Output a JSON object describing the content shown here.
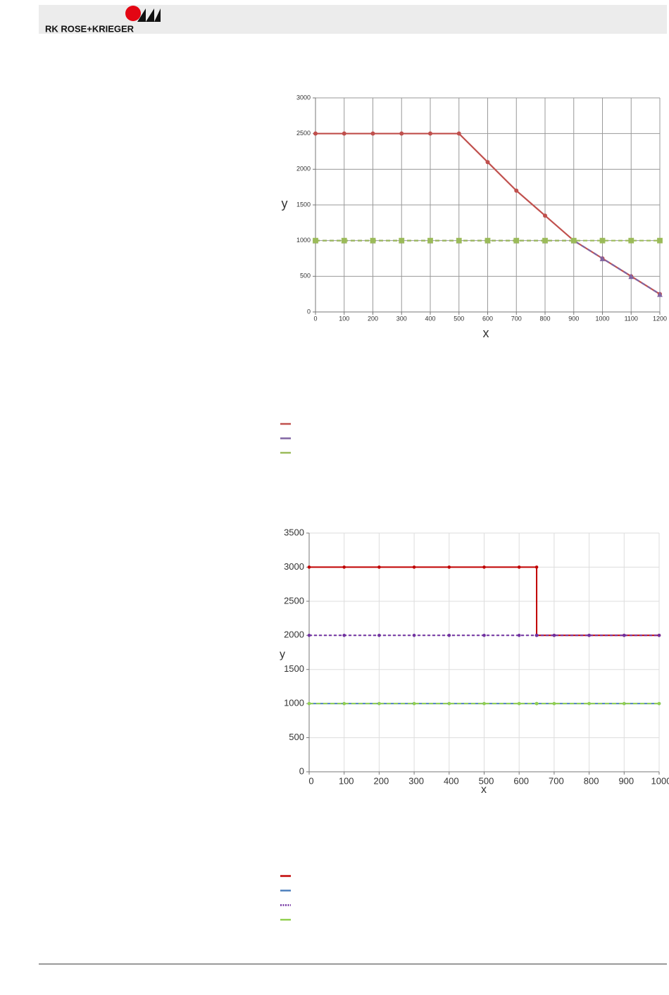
{
  "header": {
    "logo_text": "RK ROSE+KRIEGER"
  },
  "chart_data": [
    {
      "type": "line",
      "x_label": "x",
      "y_label": "y",
      "x": [
        0,
        100,
        200,
        300,
        400,
        500,
        600,
        700,
        800,
        900,
        1000,
        1100,
        1200
      ],
      "xlim": [
        0,
        1200
      ],
      "xticks": [
        0,
        100,
        200,
        300,
        400,
        500,
        600,
        700,
        800,
        900,
        1000,
        1100,
        1200
      ],
      "ylim": [
        0,
        3000
      ],
      "yticks": [
        0,
        500,
        1000,
        1500,
        2000,
        2500,
        3000
      ],
      "grid": true,
      "grid_color": "#999999",
      "series": [
        {
          "color": "#c0504d",
          "dash": false,
          "marker": "circle",
          "values": [
            2500,
            2500,
            2500,
            2500,
            2500,
            2500,
            2100,
            1700,
            1350,
            1000,
            750,
            500,
            250
          ]
        },
        {
          "color": "#8064a2",
          "dash": true,
          "marker": "triangle",
          "values": [
            1000,
            1000,
            1000,
            1000,
            1000,
            1000,
            1000,
            1000,
            1000,
            1000,
            750,
            500,
            250
          ]
        },
        {
          "color": "#9bbb59",
          "dash": true,
          "marker": "square",
          "values": [
            1000,
            1000,
            1000,
            1000,
            1000,
            1000,
            1000,
            1000,
            1000,
            1000,
            1000,
            1000,
            1000
          ]
        }
      ]
    },
    {
      "type": "line",
      "x_label": "x",
      "y_label": "y",
      "x": [
        0,
        100,
        200,
        300,
        400,
        500,
        600,
        650,
        650,
        700,
        800,
        900,
        1000
      ],
      "xlim": [
        0,
        1000
      ],
      "xticks": [
        0,
        100,
        200,
        300,
        400,
        500,
        600,
        700,
        800,
        900,
        1000
      ],
      "ylim": [
        0,
        3500
      ],
      "yticks": [
        0,
        500,
        1000,
        1500,
        2000,
        2500,
        3000,
        3500
      ],
      "grid": true,
      "grid_color": "#dddddd",
      "series": [
        {
          "color": "#c00000",
          "dash": false,
          "marker": "circle",
          "values": [
            3000,
            3000,
            3000,
            3000,
            3000,
            3000,
            3000,
            3000,
            2000,
            2000,
            2000,
            2000,
            2000
          ]
        },
        {
          "color": "#4f81bd",
          "dash": false,
          "marker": "circle",
          "values": [
            1000,
            1000,
            1000,
            1000,
            1000,
            1000,
            1000,
            1000,
            1000,
            1000,
            1000,
            1000,
            1000
          ]
        },
        {
          "color": "#7030a0",
          "dash": true,
          "marker": "circle",
          "values": [
            2000,
            2000,
            2000,
            2000,
            2000,
            2000,
            2000,
            2000,
            2000,
            2000,
            2000,
            2000,
            2000
          ]
        },
        {
          "color": "#92d050",
          "dash": true,
          "marker": "circle",
          "values": [
            1000,
            1000,
            1000,
            1000,
            1000,
            1000,
            1000,
            1000,
            1000,
            1000,
            1000,
            1000,
            1000
          ]
        }
      ]
    }
  ]
}
